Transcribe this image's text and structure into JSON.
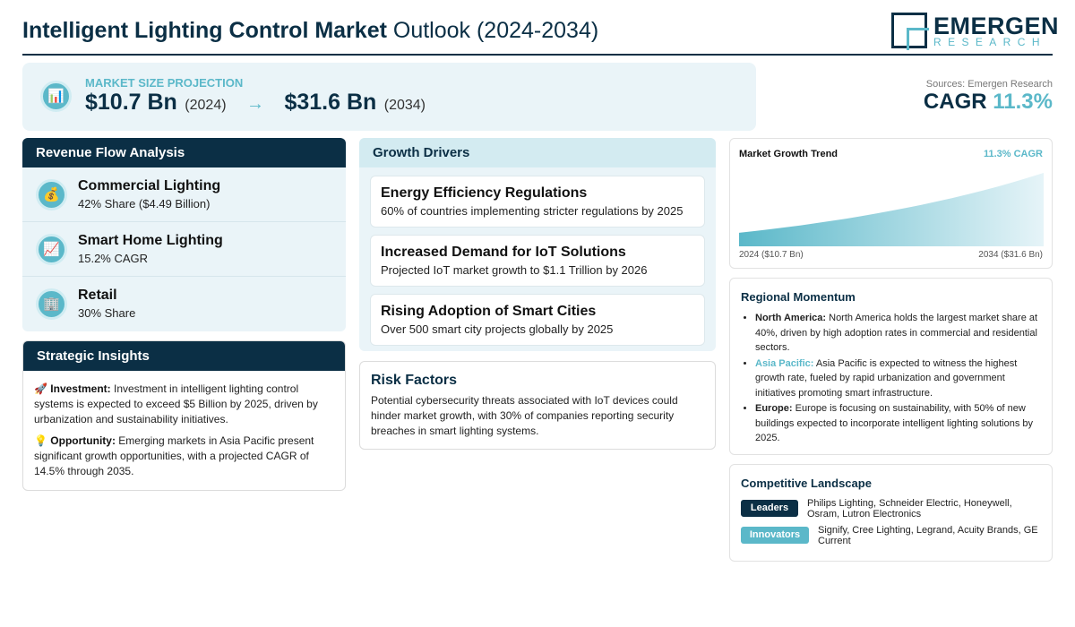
{
  "header": {
    "title_bold": "Intelligent Lighting Control Market",
    "title_light": "Outlook (2024-2034)",
    "logo_main": "EMERGEN",
    "logo_sub": "RESEARCH"
  },
  "projection": {
    "icon": "bar-chart-icon",
    "label": "MARKET SIZE PROJECTION",
    "start_value": "$10.7 Bn",
    "start_year": "(2024)",
    "arrow": "→",
    "end_value": "$31.6 Bn",
    "end_year": "(2034)"
  },
  "summary": {
    "sources": "Sources: Emergen Research",
    "cagr_label": "CAGR",
    "cagr_value": "11.3%"
  },
  "revenue": {
    "heading": "Revenue Flow Analysis",
    "items": [
      {
        "icon": "money-bag-icon",
        "name": "Commercial Lighting",
        "sub": "42% Share ($4.49 Billion)"
      },
      {
        "icon": "trend-chart-icon",
        "name": "Smart Home Lighting",
        "sub": "15.2% CAGR"
      },
      {
        "icon": "building-icon",
        "name": "Retail",
        "sub": "30% Share"
      }
    ]
  },
  "insights": {
    "heading": "Strategic Insights",
    "investment_label": "Investment:",
    "investment_text": "Investment in intelligent lighting control systems is expected to exceed $5 Billion by 2025, driven by urbanization and sustainability initiatives.",
    "opportunity_label": "Opportunity:",
    "opportunity_text": "Emerging markets in Asia Pacific present significant growth opportunities, with a projected CAGR of 14.5% through 2035."
  },
  "drivers": {
    "heading": "Growth Drivers",
    "items": [
      {
        "title": "Energy Efficiency Regulations",
        "sub": "60% of countries implementing stricter regulations by 2025"
      },
      {
        "title": "Increased Demand for IoT Solutions",
        "sub": "Projected IoT market growth to $1.1 Trillion by 2026"
      },
      {
        "title": "Rising Adoption of Smart Cities",
        "sub": "Over 500 smart city projects globally by 2025"
      }
    ]
  },
  "risk": {
    "heading": "Risk Factors",
    "text": "Potential cybersecurity threats associated with IoT devices could hinder market growth, with 30% of companies reporting security breaches in smart lighting systems."
  },
  "trend": {
    "heading": "Market Growth Trend",
    "cagr_label": "11.3% CAGR",
    "start_label": "2024 ($10.7 Bn)",
    "end_label": "2034 ($31.6 Bn)",
    "fill_from": "#5bb8c9",
    "fill_to": "#e6f4f8"
  },
  "chart_data": {
    "type": "area",
    "x": [
      2024,
      2034
    ],
    "values": [
      10.7,
      31.6
    ],
    "title": "Market Growth Trend",
    "annotation": "11.3% CAGR",
    "xlabel": "",
    "ylabel": ""
  },
  "regional": {
    "heading": "Regional Momentum",
    "items": [
      {
        "label": "North America:",
        "text": "North America holds the largest market share at 40%, driven by high adoption rates in commercial and residential sectors."
      },
      {
        "label": "Asia Pacific:",
        "text": "Asia Pacific is expected to witness the highest growth rate, fueled by rapid urbanization and government initiatives promoting smart infrastructure."
      },
      {
        "label": "Europe:",
        "text": "Europe is focusing on sustainability, with 50% of new buildings expected to incorporate intelligent lighting solutions by 2025."
      }
    ]
  },
  "competitive": {
    "heading": "Competitive Landscape",
    "leaders_label": "Leaders",
    "leaders_text": "Philips Lighting, Schneider Electric, Honeywell, Osram, Lutron Electronics",
    "innovators_label": "Innovators",
    "innovators_text": "Signify, Cree Lighting, Legrand, Acuity Brands, GE Current"
  },
  "colors": {
    "navy": "#0b2f45",
    "accent": "#5bb8c9",
    "panel_bg": "#eaf4f8"
  }
}
